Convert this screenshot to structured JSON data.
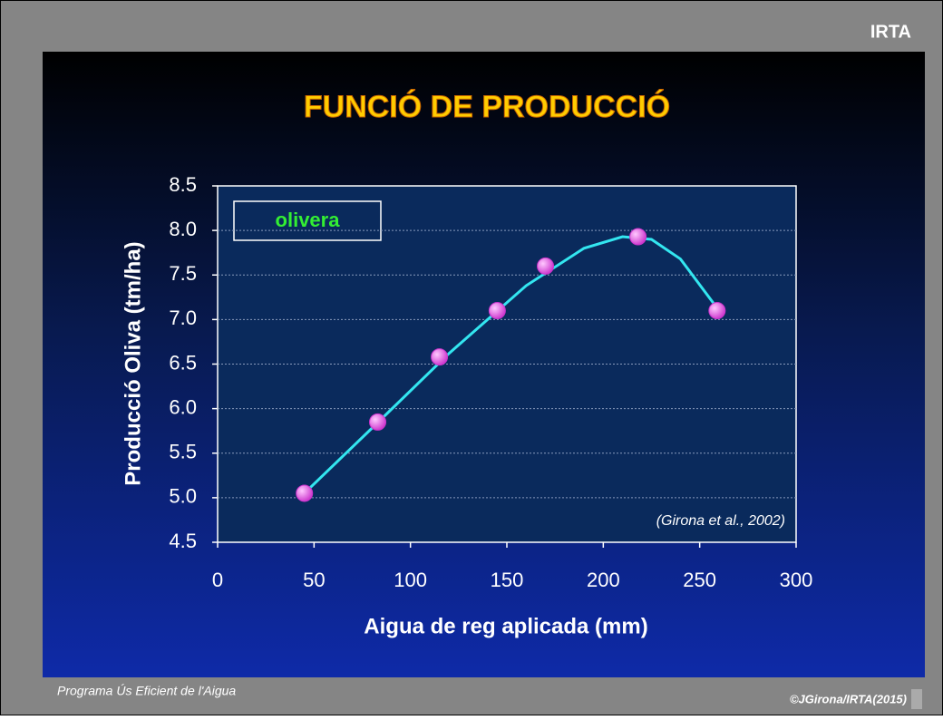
{
  "brand": "IRTA",
  "footer": {
    "left": "Programa Ús Eficient de l'Aigua",
    "right": "©JGirona/IRTA(2015)"
  },
  "chart_data": {
    "type": "scatter",
    "title": "FUNCIÓ DE PRODUCCIÓ",
    "x_label": "Aigua de reg aplicada (mm)",
    "y_label": "Producció Oliva (tm/ha)",
    "legend_label": "olivera",
    "annotation": "(Girona et al., 2002)",
    "x": [
      45,
      83,
      115,
      145,
      170,
      218,
      259
    ],
    "values": [
      5.05,
      5.85,
      6.58,
      7.1,
      7.6,
      7.93,
      7.1
    ],
    "color": "#cc33cc",
    "curve": {
      "color": "#33e6f0",
      "x": [
        45,
        80,
        120,
        160,
        190,
        210,
        225,
        240,
        259
      ],
      "values": [
        5.05,
        5.78,
        6.62,
        7.38,
        7.8,
        7.93,
        7.9,
        7.68,
        7.13
      ]
    },
    "xlim": [
      0,
      300
    ],
    "xticks": [
      0,
      50,
      100,
      150,
      200,
      250,
      300
    ],
    "ylim": [
      4.5,
      8.5
    ],
    "yticks": [
      4.5,
      {
        "value": 5,
        "label": "5.0"
      },
      5.5,
      {
        "value": 6,
        "label": "6.0"
      },
      6.5,
      {
        "value": 7,
        "label": "7.0"
      },
      7.5,
      {
        "value": 8,
        "label": "8.0"
      },
      8.5
    ],
    "grid": true
  }
}
